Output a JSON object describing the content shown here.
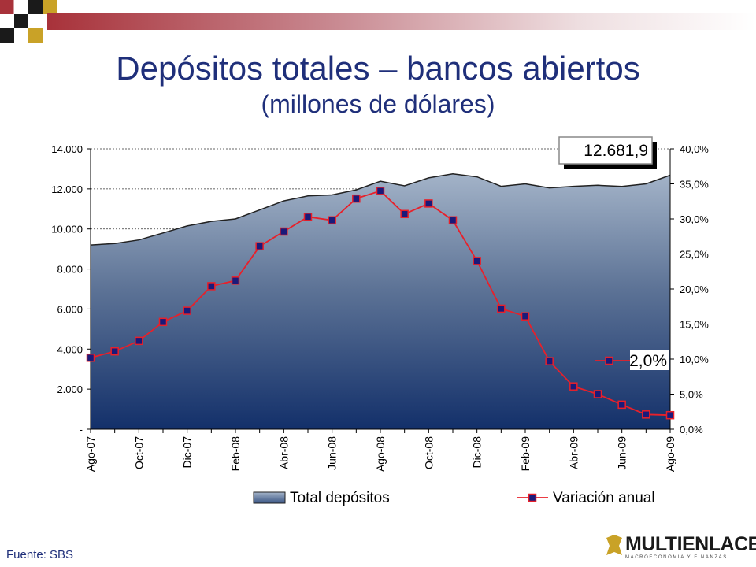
{
  "slide": {
    "title": "Depósitos totales – bancos abiertos",
    "subtitle": "(millones de dólares)",
    "source": "Fuente: SBS",
    "logo_name": "MULTIENLACE",
    "logo_tagline": "MACROECONOMIA Y FINANZAS",
    "colors": {
      "title": "#1f2f7a",
      "accent_red": "#a8323a",
      "gold": "#c9a227"
    }
  },
  "chart_data": {
    "type": "area",
    "categories": [
      "Ago-07",
      "Sep-07",
      "Oct-07",
      "Nov-07",
      "Dic-07",
      "Ene-08",
      "Feb-08",
      "Mar-08",
      "Abr-08",
      "May-08",
      "Jun-08",
      "Jul-08",
      "Ago-08",
      "Sep-08",
      "Oct-08",
      "Nov-08",
      "Dic-08",
      "Ene-09",
      "Feb-09",
      "Mar-09",
      "Abr-09",
      "May-09",
      "Jun-09",
      "Jul-09",
      "Ago-09"
    ],
    "x_tick_labels": [
      "Ago-07",
      "Oct-07",
      "Dic-07",
      "Feb-08",
      "Abr-08",
      "Jun-08",
      "Ago-08",
      "Oct-08",
      "Dic-08",
      "Feb-09",
      "Abr-09",
      "Jun-09",
      "Ago-09"
    ],
    "series": [
      {
        "name": "Total depósitos",
        "type": "area",
        "axis": "left",
        "color": "#1f3a6e",
        "values": [
          9200,
          9270,
          9450,
          9800,
          10150,
          10380,
          10500,
          10950,
          11400,
          11650,
          11700,
          11950,
          12380,
          12150,
          12550,
          12750,
          12600,
          12130,
          12250,
          12050,
          12130,
          12180,
          12120,
          12250,
          12681.9
        ]
      },
      {
        "name": "Variación anual",
        "type": "line",
        "axis": "right",
        "color": "#e8202a",
        "marker_color": "#1a1a7a",
        "values": [
          10.2,
          11.1,
          12.6,
          15.3,
          16.9,
          20.4,
          21.2,
          26.1,
          28.2,
          30.3,
          29.8,
          32.9,
          34.0,
          30.7,
          32.2,
          29.8,
          24.0,
          17.2,
          16.1,
          9.7,
          6.1,
          5.0,
          3.5,
          2.1,
          2.0
        ]
      }
    ],
    "y_left": {
      "lim": [
        0,
        14000
      ],
      "ticks": [
        "-",
        "2.000",
        "4.000",
        "6.000",
        "8.000",
        "10.000",
        "12.000",
        "14.000"
      ]
    },
    "y_right": {
      "lim": [
        0,
        40
      ],
      "ticks": [
        "0,0%",
        "5,0%",
        "10,0%",
        "15,0%",
        "20,0%",
        "25,0%",
        "30,0%",
        "35,0%",
        "40,0%"
      ]
    },
    "callouts": {
      "last_total": "12.681,9",
      "last_variation": "2,0%"
    },
    "grid": "horizontal dashed",
    "legend_position": "bottom"
  }
}
